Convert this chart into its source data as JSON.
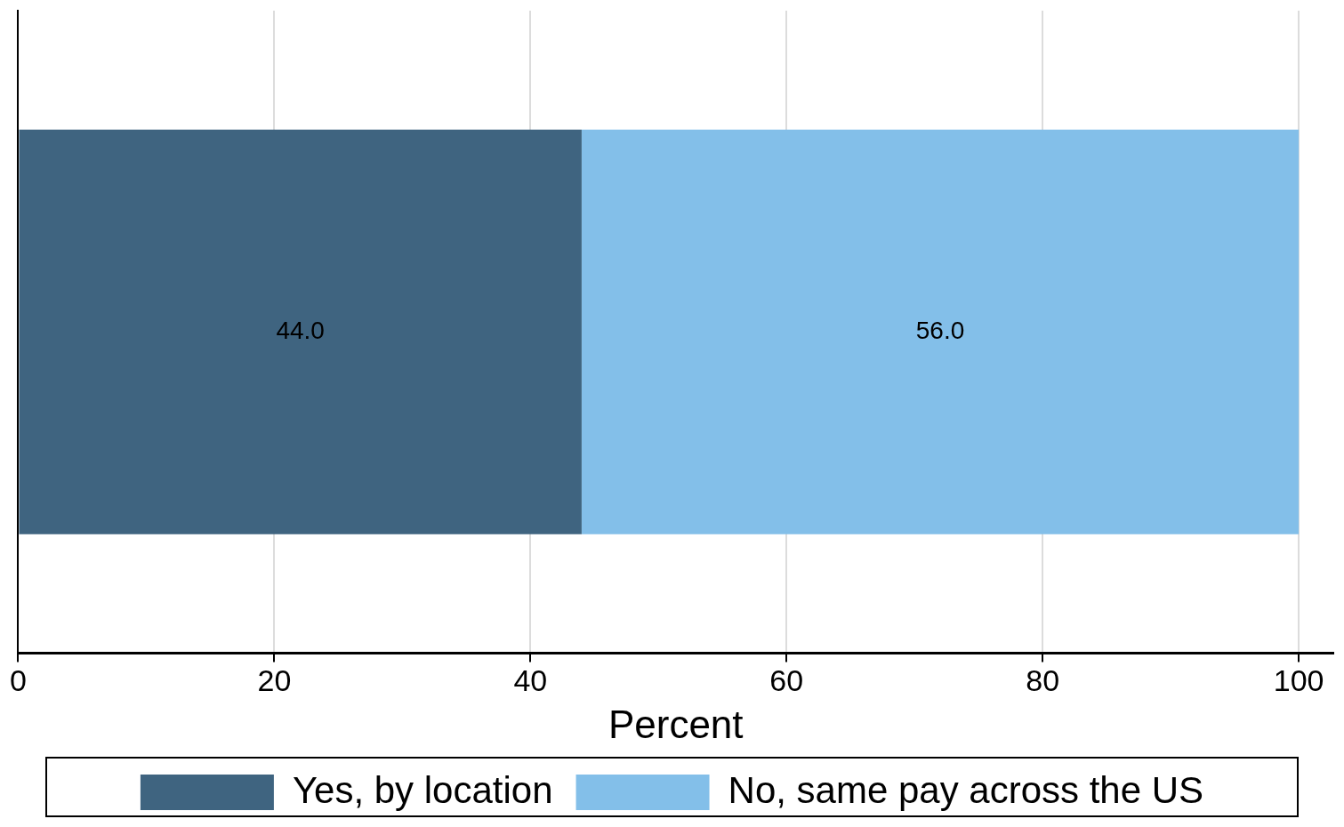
{
  "chart_data": {
    "type": "bar",
    "orientation": "horizontal",
    "stacked": true,
    "categories": [
      null
    ],
    "series": [
      {
        "name": "Yes, by location",
        "color": "#3f6480",
        "values": [
          44.0
        ],
        "value_labels": [
          "44.0"
        ]
      },
      {
        "name": "No, same pay across the US",
        "color": "#83bfe9",
        "values": [
          56.0
        ],
        "value_labels": [
          "56.0"
        ]
      }
    ],
    "xlabel": "Percent",
    "xlim": [
      0,
      102.7
    ],
    "xticks": [
      0,
      20,
      40,
      60,
      80,
      100
    ],
    "grid": "x",
    "legend": "bottom"
  }
}
